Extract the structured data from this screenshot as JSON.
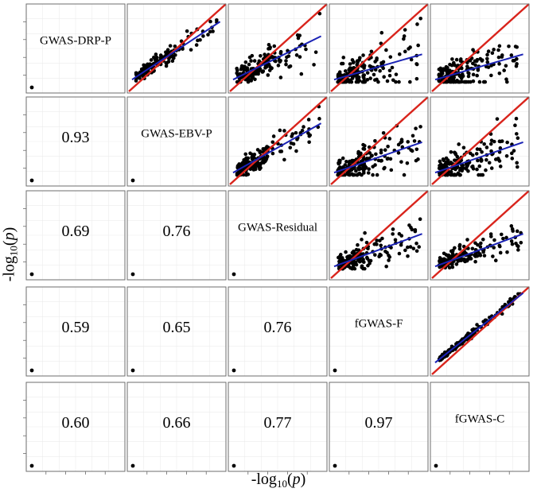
{
  "chart_data": {
    "type": "scatter",
    "layout": "pairs-matrix",
    "variables": [
      "GWAS-DRP-P",
      "GWAS-EBV-P",
      "GWAS-Residual",
      "fGWAS-F",
      "fGWAS-C"
    ],
    "correlations": [
      {
        "row": 2,
        "col": 1,
        "value": "0.93"
      },
      {
        "row": 3,
        "col": 1,
        "value": "0.69"
      },
      {
        "row": 3,
        "col": 2,
        "value": "0.76"
      },
      {
        "row": 4,
        "col": 1,
        "value": "0.59"
      },
      {
        "row": 4,
        "col": 2,
        "value": "0.65"
      },
      {
        "row": 4,
        "col": 3,
        "value": "0.76"
      },
      {
        "row": 5,
        "col": 1,
        "value": "0.60"
      },
      {
        "row": 5,
        "col": 2,
        "value": "0.66"
      },
      {
        "row": 5,
        "col": 3,
        "value": "0.77"
      },
      {
        "row": 5,
        "col": 4,
        "value": "0.97"
      }
    ],
    "scatter_panels": [
      {
        "row": 1,
        "col": 2,
        "fit_slope": 0.8,
        "spread": 0.07
      },
      {
        "row": 1,
        "col": 3,
        "fit_slope": 0.6,
        "spread": 0.12
      },
      {
        "row": 1,
        "col": 4,
        "fit_slope": 0.35,
        "spread": 0.17
      },
      {
        "row": 1,
        "col": 5,
        "fit_slope": 0.35,
        "spread": 0.17
      },
      {
        "row": 2,
        "col": 3,
        "fit_slope": 0.68,
        "spread": 0.1
      },
      {
        "row": 2,
        "col": 4,
        "fit_slope": 0.42,
        "spread": 0.14
      },
      {
        "row": 2,
        "col": 5,
        "fit_slope": 0.42,
        "spread": 0.14
      },
      {
        "row": 3,
        "col": 4,
        "fit_slope": 0.45,
        "spread": 0.12
      },
      {
        "row": 3,
        "col": 5,
        "fit_slope": 0.45,
        "spread": 0.1
      },
      {
        "row": 4,
        "col": 5,
        "fit_slope": 0.96,
        "spread": 0.03
      }
    ],
    "reference_line": {
      "label": "y = x",
      "color": "#d9241c"
    },
    "fit_line_color": "#1a22b5",
    "point_color": "#000000",
    "grid": true,
    "xlabel": {
      "prefix": "-log",
      "sub": "10",
      "var": "p"
    },
    "ylabel": {
      "prefix": "-log",
      "sub": "10",
      "var": "p"
    }
  }
}
